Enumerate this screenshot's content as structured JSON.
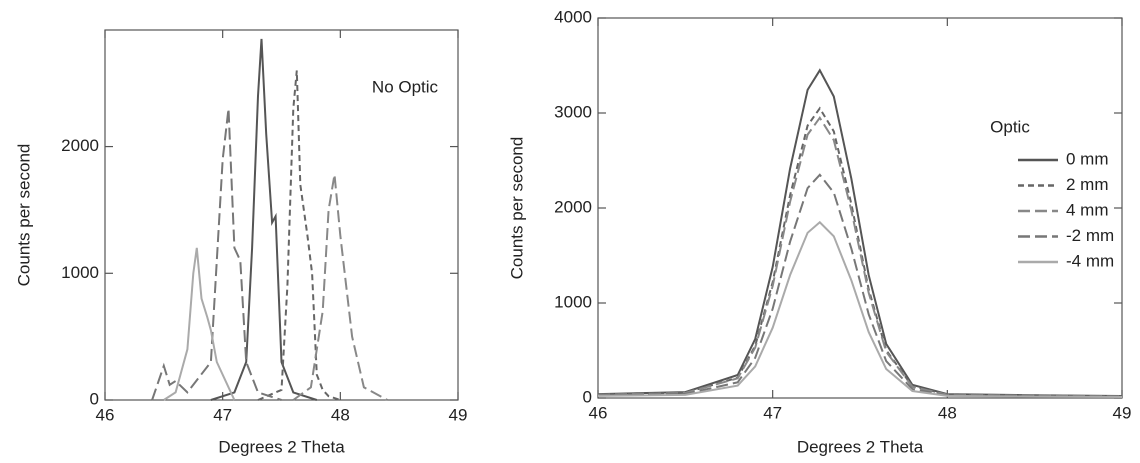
{
  "chart_data": [
    {
      "type": "line",
      "annotation": "No Optic",
      "xlabel": "Degrees 2 Theta",
      "ylabel": "Counts per second",
      "xlim": [
        46,
        49
      ],
      "ylim": [
        0,
        2920
      ],
      "xticks": [
        46,
        47,
        48,
        49
      ],
      "yticks": [
        0,
        1000,
        2000
      ],
      "series": [
        {
          "color": "#555555",
          "dash": "solid",
          "x": [
            46.9,
            47.1,
            47.2,
            47.25,
            47.3,
            47.33,
            47.37,
            47.42,
            47.45,
            47.5,
            47.6,
            47.8
          ],
          "values": [
            0,
            60,
            300,
            1200,
            2400,
            2850,
            2100,
            1400,
            1450,
            300,
            60,
            0
          ]
        },
        {
          "color": "#666666",
          "dash": "short",
          "x": [
            47.3,
            47.5,
            47.55,
            47.6,
            47.63,
            47.66,
            47.72,
            47.76,
            47.8,
            47.85,
            47.9,
            48.0
          ],
          "values": [
            0,
            80,
            900,
            2300,
            2600,
            1700,
            1300,
            1000,
            200,
            80,
            30,
            0
          ]
        },
        {
          "color": "#777777",
          "dash": "long",
          "x": [
            46.4,
            46.5,
            46.55,
            46.6,
            46.7,
            46.9,
            47.0,
            47.05,
            47.1,
            47.15,
            47.2,
            47.3,
            47.5
          ],
          "values": [
            0,
            270,
            120,
            150,
            60,
            300,
            1900,
            2300,
            1200,
            1100,
            300,
            60,
            0
          ]
        },
        {
          "color": "#888888",
          "dash": "long",
          "x": [
            47.6,
            47.75,
            47.85,
            47.9,
            47.95,
            48.0,
            48.05,
            48.1,
            48.2,
            48.4
          ],
          "values": [
            0,
            100,
            700,
            1500,
            1780,
            1300,
            900,
            500,
            100,
            0
          ]
        },
        {
          "color": "#aaaaaa",
          "dash": "solid",
          "x": [
            46.5,
            46.6,
            46.7,
            46.75,
            46.78,
            46.82,
            46.87,
            46.9,
            46.95,
            47.1
          ],
          "values": [
            0,
            60,
            400,
            1000,
            1200,
            800,
            650,
            550,
            300,
            0
          ]
        }
      ]
    },
    {
      "type": "line",
      "legend_title": "Optic",
      "xlabel": "Degrees 2 Theta",
      "ylabel": "Counts per second",
      "xlim": [
        46,
        49
      ],
      "ylim": [
        0,
        4000
      ],
      "xticks": [
        46,
        47,
        48,
        49
      ],
      "yticks": [
        0,
        1000,
        2000,
        3000,
        4000
      ],
      "x": [
        46,
        46.5,
        46.8,
        46.9,
        47.0,
        47.1,
        47.2,
        47.27,
        47.35,
        47.45,
        47.55,
        47.65,
        47.8,
        48.0,
        48.5,
        49
      ],
      "series": [
        {
          "name": "0 mm",
          "color": "#555555",
          "dash": "solid",
          "values": [
            41,
            62,
            242,
            621,
            1380,
            2415,
            3243,
            3450,
            3174,
            2312,
            1294,
            569,
            138,
            41,
            28,
            21
          ]
        },
        {
          "name": "2 mm",
          "color": "#666666",
          "dash": "short",
          "values": [
            37,
            55,
            214,
            549,
            1220,
            2135,
            2867,
            3050,
            2806,
            2044,
            1144,
            503,
            122,
            37,
            24,
            18
          ]
        },
        {
          "name": "4 mm",
          "color": "#888888",
          "dash": "long",
          "values": [
            35,
            53,
            207,
            531,
            1180,
            2065,
            2773,
            2950,
            2714,
            1977,
            1106,
            487,
            118,
            35,
            24,
            18
          ]
        },
        {
          "name": "-2 mm",
          "color": "#777777",
          "dash": "long",
          "values": [
            28,
            42,
            165,
            423,
            940,
            1645,
            2209,
            2350,
            2162,
            1575,
            881,
            388,
            94,
            28,
            19,
            14
          ]
        },
        {
          "name": "-4 mm",
          "color": "#aaaaaa",
          "dash": "solid",
          "values": [
            22,
            33,
            130,
            333,
            740,
            1295,
            1739,
            1850,
            1702,
            1240,
            694,
            305,
            74,
            22,
            15,
            11
          ]
        }
      ]
    }
  ]
}
